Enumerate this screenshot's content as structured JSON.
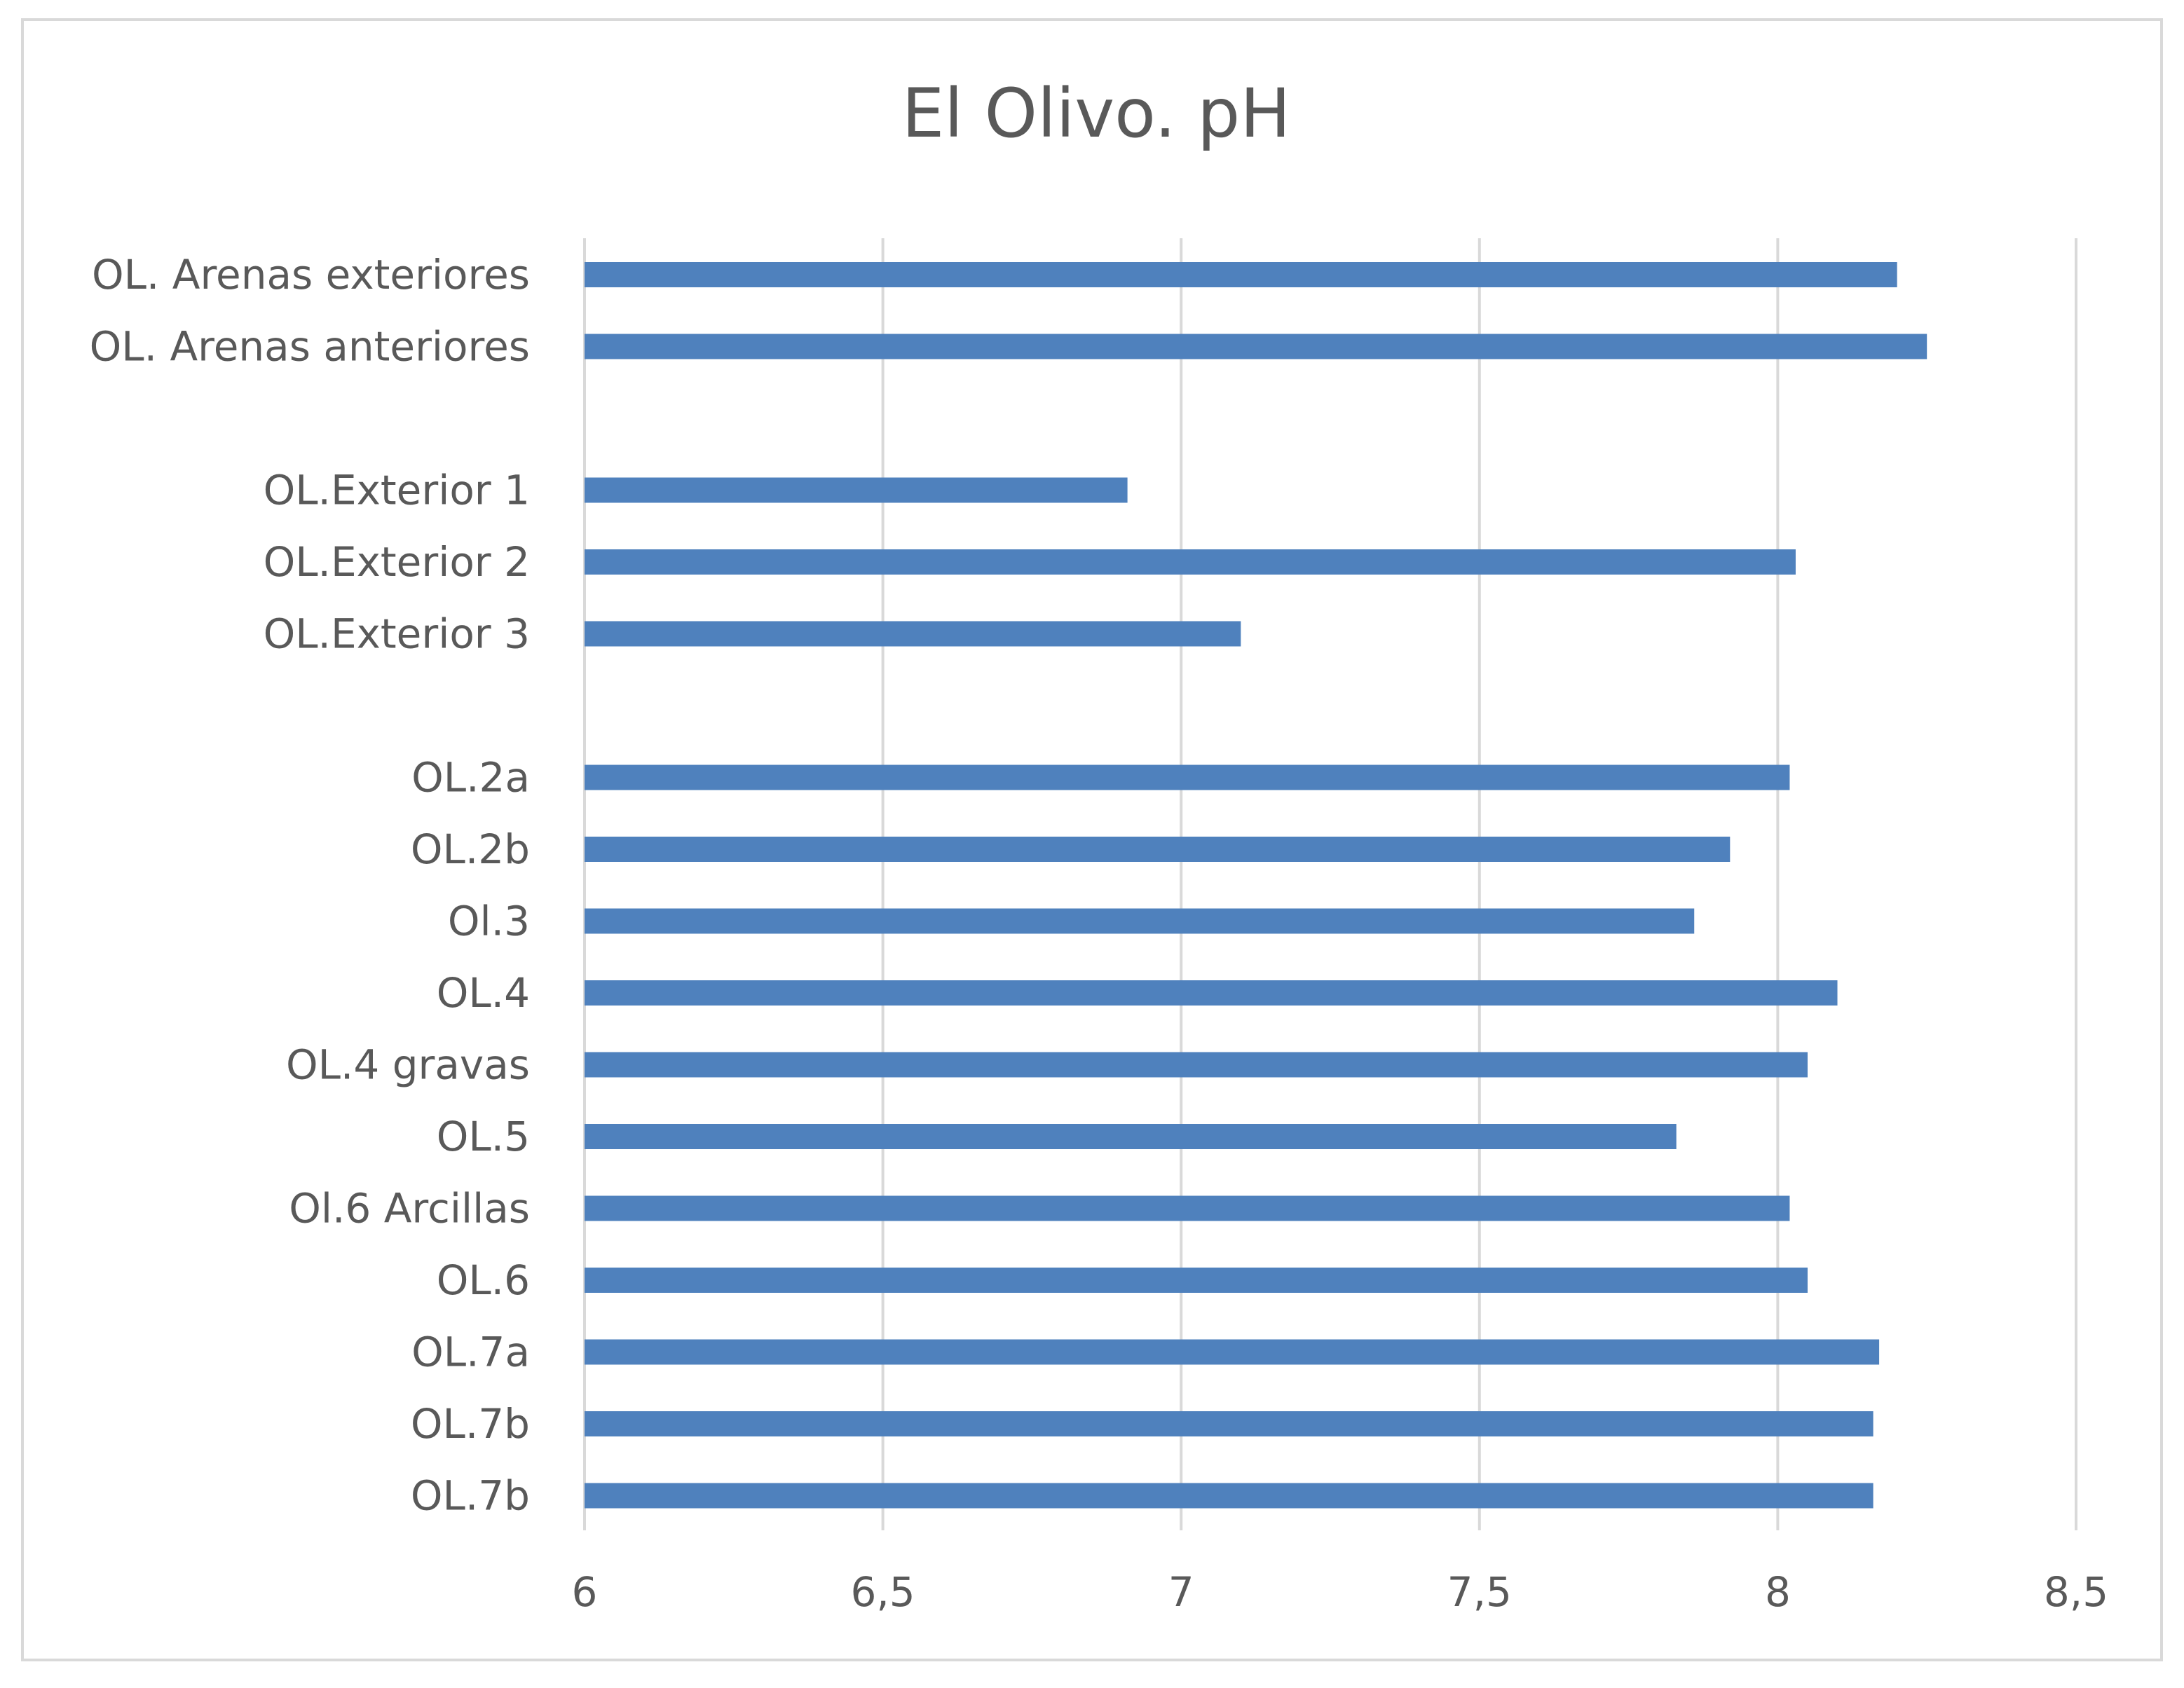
{
  "chart_data": {
    "type": "bar",
    "orientation": "horizontal",
    "title": "El Olivo. pH",
    "xlabel": "",
    "ylabel": "",
    "xlim": [
      6,
      8.5
    ],
    "xticks": [
      6,
      6.5,
      7,
      7.5,
      8,
      8.5
    ],
    "xtick_labels": [
      "6",
      "6,5",
      "7",
      "7,5",
      "8",
      "8,5"
    ],
    "grid": true,
    "legend": "none",
    "bar_color": "#4f81bd",
    "categories": [
      "OL. Arenas exteriores",
      "OL. Arenas anteriores",
      "",
      "OL.Exterior 1",
      "OL.Exterior 2",
      "OL.Exterior 3",
      "",
      "OL.2a",
      "OL.2b",
      "Ol.3",
      "OL.4",
      "OL.4 gravas",
      "OL.5",
      "Ol.6 Arcillas",
      "OL.6",
      "OL.7a",
      "OL.7b",
      "OL.7b"
    ],
    "values": [
      8.2,
      8.25,
      null,
      6.91,
      8.03,
      7.1,
      null,
      8.02,
      7.92,
      7.86,
      8.1,
      8.05,
      7.83,
      8.02,
      8.05,
      8.17,
      8.16,
      8.16
    ]
  }
}
